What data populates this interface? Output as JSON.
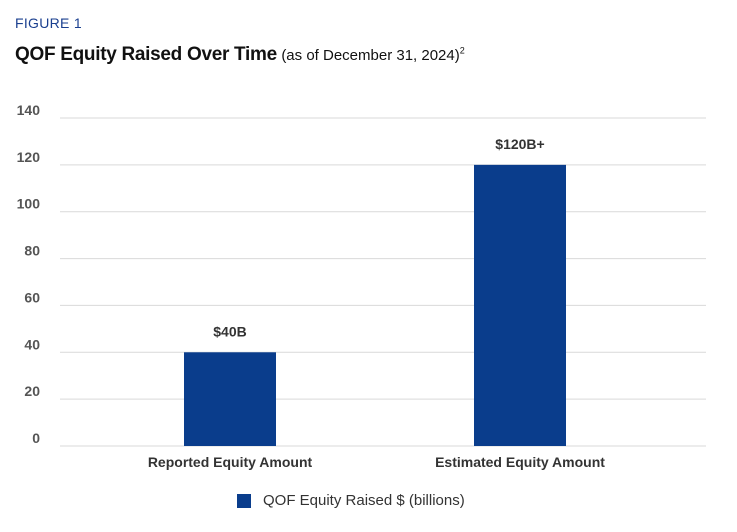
{
  "figure_label": "FIGURE 1",
  "title": "QOF Equity Raised Over Time",
  "subtitle": "(as of December 31, 2024)",
  "footnote_marker": "2",
  "colors": {
    "bar": "#0a3d8c",
    "grid": "#d9d9d9",
    "tick_text": "#555555",
    "label_text": "#333333"
  },
  "chart_data": {
    "type": "bar",
    "categories": [
      "Reported Equity Amount",
      "Estimated Equity Amount"
    ],
    "series": [
      {
        "name": "QOF Equity Raised $ (billions)",
        "values": [
          40,
          120
        ]
      }
    ],
    "data_labels": [
      "$40B",
      "$120B+"
    ],
    "y_ticks": [
      0,
      20,
      40,
      60,
      80,
      100,
      120,
      140
    ],
    "ylim": [
      0,
      140
    ],
    "grid": true,
    "legend_position": "bottom"
  }
}
